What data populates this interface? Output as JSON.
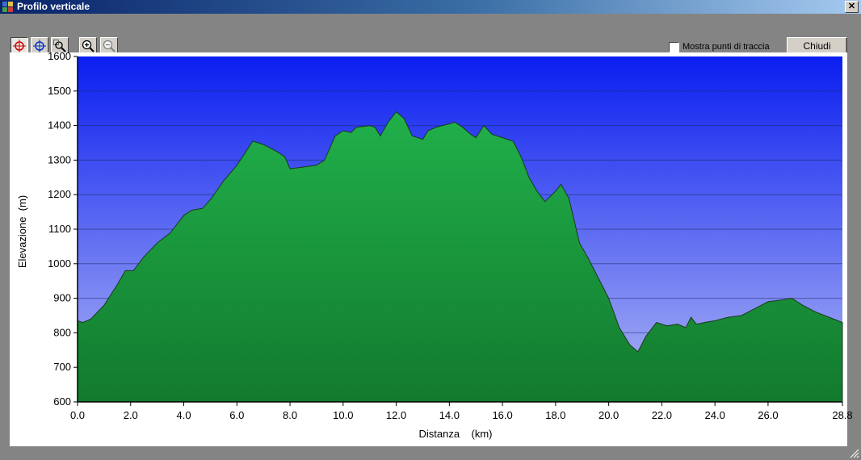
{
  "window": {
    "title": "Profilo verticale",
    "close_glyph": "✕"
  },
  "toolbar": {
    "tools": [
      {
        "icon": "crosshair-red-icon",
        "pressed": true
      },
      {
        "icon": "crosshair-blue-icon",
        "pressed": false
      },
      {
        "icon": "zoom-area-icon",
        "pressed": false
      },
      {
        "icon": "zoom-in-icon",
        "pressed": false
      },
      {
        "icon": "zoom-out-icon",
        "pressed": false
      }
    ],
    "show_track_points_label": "Mostra punti di traccia",
    "show_track_points_checked": false,
    "close_label": "Chiudi"
  },
  "colors": {
    "sky_top": "#0a1ef0",
    "sky_bottom": "#b0b8f4",
    "terrain_light": "#21b04a",
    "terrain_dark": "#127a2e",
    "outline": "#1a3a1a"
  },
  "chart_data": {
    "type": "area",
    "xlabel": "Distanza    (km)",
    "ylabel": "Elevazione  (m)",
    "xlim": [
      0.0,
      28.8
    ],
    "ylim": [
      600,
      1600
    ],
    "xticks": [
      "0.0",
      "2.0",
      "4.0",
      "6.0",
      "8.0",
      "10.0",
      "12.0",
      "14.0",
      "16.0",
      "18.0",
      "20.0",
      "22.0",
      "24.0",
      "26.0",
      "28.8"
    ],
    "yticks": [
      "1600",
      "1500",
      "1400",
      "1300",
      "1200",
      "1100",
      "1000",
      "900",
      "800",
      "700",
      "600"
    ],
    "grid": true,
    "x": [
      0.0,
      0.2,
      0.5,
      1.0,
      1.5,
      1.8,
      2.1,
      2.5,
      3.0,
      3.5,
      4.0,
      4.3,
      4.7,
      5.0,
      5.5,
      6.0,
      6.3,
      6.6,
      7.0,
      7.5,
      7.8,
      8.0,
      8.5,
      9.0,
      9.3,
      9.7,
      10.0,
      10.3,
      10.5,
      11.0,
      11.2,
      11.4,
      11.7,
      12.0,
      12.3,
      12.6,
      13.0,
      13.2,
      13.5,
      14.0,
      14.2,
      14.5,
      14.8,
      15.0,
      15.3,
      15.6,
      16.0,
      16.4,
      16.7,
      17.0,
      17.3,
      17.6,
      18.0,
      18.2,
      18.5,
      18.9,
      19.2,
      19.6,
      20.0,
      20.4,
      20.8,
      21.1,
      21.4,
      21.8,
      22.2,
      22.6,
      22.9,
      23.1,
      23.3,
      23.6,
      24.0,
      24.5,
      25.0,
      25.5,
      26.0,
      26.5,
      26.9,
      27.3,
      27.8,
      28.3,
      28.8
    ],
    "y": [
      835,
      830,
      840,
      880,
      940,
      980,
      980,
      1020,
      1060,
      1090,
      1140,
      1155,
      1160,
      1185,
      1240,
      1285,
      1320,
      1355,
      1345,
      1325,
      1310,
      1275,
      1280,
      1285,
      1300,
      1370,
      1385,
      1380,
      1395,
      1400,
      1395,
      1370,
      1410,
      1440,
      1420,
      1370,
      1360,
      1385,
      1395,
      1405,
      1410,
      1395,
      1375,
      1365,
      1400,
      1375,
      1365,
      1355,
      1310,
      1250,
      1210,
      1180,
      1210,
      1230,
      1190,
      1060,
      1020,
      960,
      900,
      815,
      765,
      745,
      790,
      830,
      820,
      825,
      815,
      845,
      825,
      830,
      835,
      845,
      850,
      870,
      890,
      895,
      900,
      880,
      860,
      845,
      830
    ]
  }
}
